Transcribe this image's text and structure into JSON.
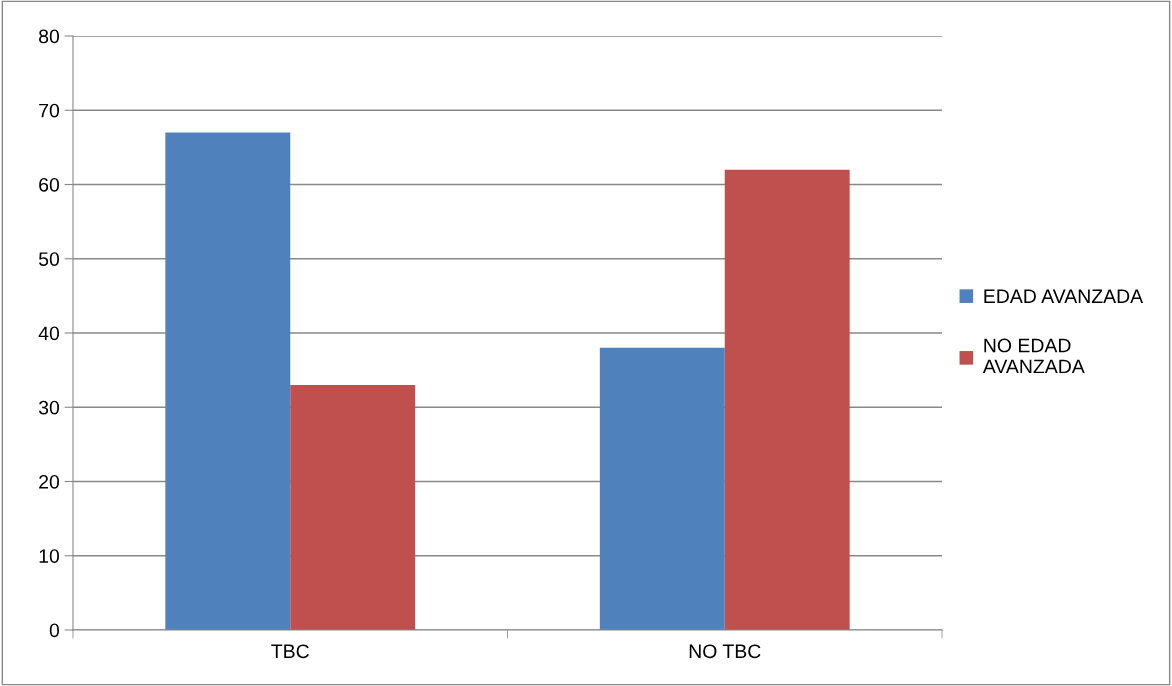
{
  "chart_data": {
    "type": "bar",
    "categories": [
      "TBC",
      "NO TBC"
    ],
    "series": [
      {
        "name": "EDAD AVANZADA",
        "color": "#4f81bd",
        "values": [
          67,
          38
        ]
      },
      {
        "name": "NO EDAD AVANZADA",
        "color": "#c0504d",
        "values": [
          33,
          62
        ]
      }
    ],
    "ylim": [
      0,
      80
    ],
    "yticks": [
      0,
      10,
      20,
      30,
      40,
      50,
      60,
      70,
      80
    ],
    "grid": "y",
    "legend": "right"
  }
}
